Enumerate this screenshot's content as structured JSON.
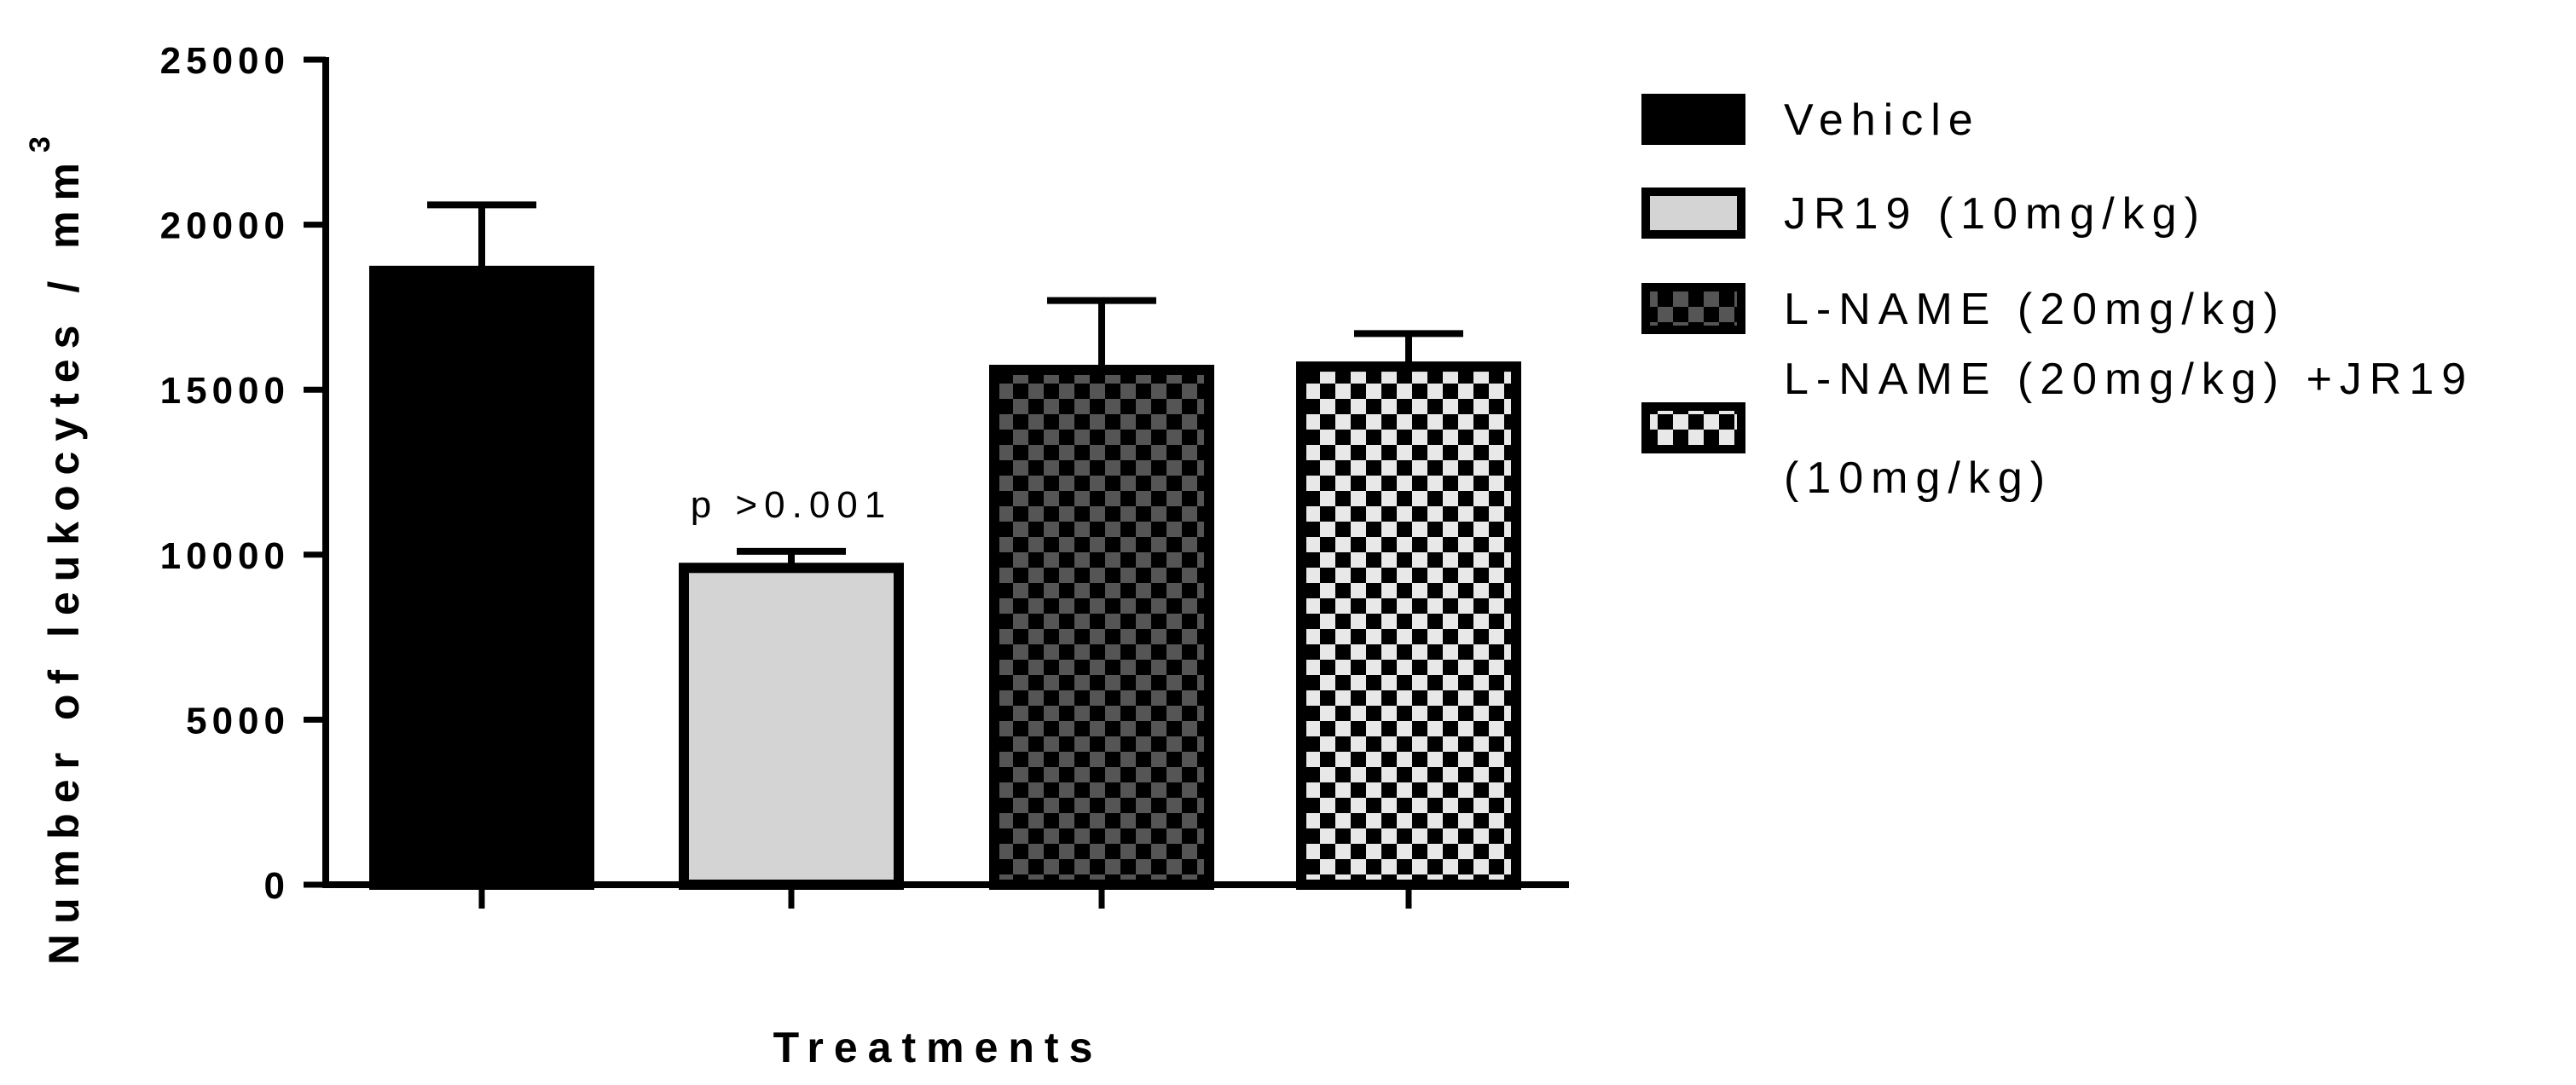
{
  "chart_data": {
    "type": "bar",
    "title": "",
    "xlabel": "Treatments",
    "ylabel": "Number of leukocytes / mm",
    "ylabel_sup": "3",
    "ylim": [
      0,
      25000
    ],
    "yticks": [
      "0",
      "5000",
      "10000",
      "15000",
      "20000",
      "25000"
    ],
    "grid": false,
    "legend_position": "right",
    "series": [
      {
        "name": "Vehicle",
        "value": 18600,
        "error": 2000,
        "pattern": "solid-black"
      },
      {
        "name": "JR19 (10mg/kg)",
        "value": 9600,
        "error": 500,
        "pattern": "solid-lightgray"
      },
      {
        "name": "L-NAME (20mg/kg)",
        "value": 15600,
        "error": 2100,
        "pattern": "dark-checker"
      },
      {
        "name": "L-NAME (20mg/kg) +JR19 (10mg/kg)",
        "legend_lines": [
          "L-NAME (20mg/kg) +JR19",
          "(10mg/kg)"
        ],
        "value": 15700,
        "error": 1000,
        "pattern": "light-checker"
      }
    ],
    "annotations": [
      {
        "bar_index": 1,
        "text": "p >0.001"
      }
    ],
    "colors": {
      "black": "#000000",
      "lightgray": "#d4d4d4",
      "darkgray": "#3c3c3c",
      "checker_light": "#e6e6e6"
    }
  }
}
